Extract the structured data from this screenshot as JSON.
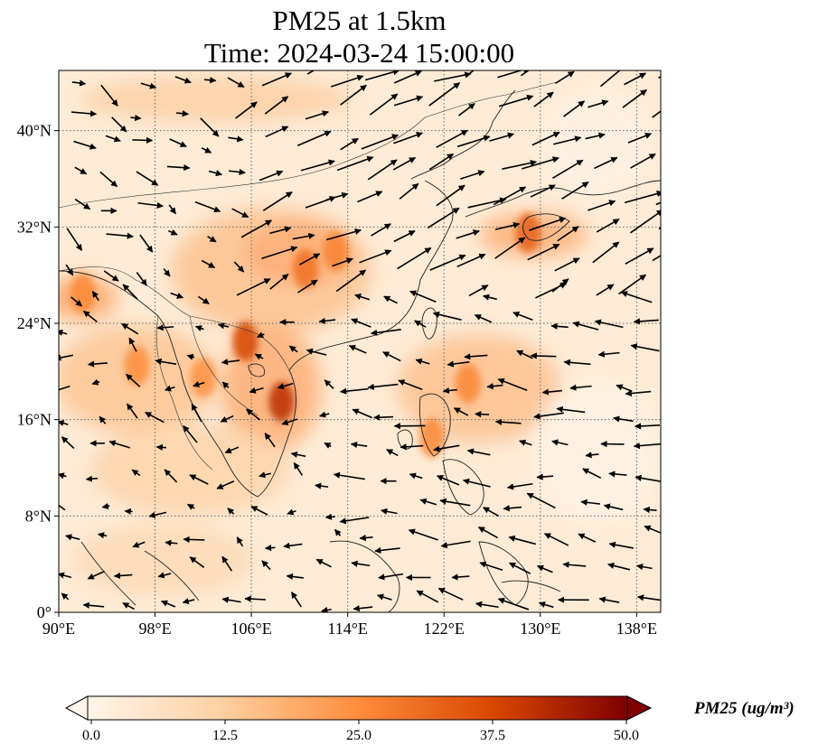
{
  "title": {
    "line1": "PM25 at 1.5km",
    "line2": "Time: 2024-03-24 15:00:00"
  },
  "map": {
    "extent": {
      "lon": [
        90,
        140
      ],
      "lat": [
        0,
        45
      ]
    },
    "lon_ticks": [
      {
        "value": 90,
        "label": "90°E"
      },
      {
        "value": 98,
        "label": "98°E"
      },
      {
        "value": 106,
        "label": "106°E"
      },
      {
        "value": 114,
        "label": "114°E"
      },
      {
        "value": 122,
        "label": "122°E"
      },
      {
        "value": 130,
        "label": "130°E"
      },
      {
        "value": 138,
        "label": "138°E"
      }
    ],
    "lat_ticks": [
      {
        "value": 0,
        "label": "0°"
      },
      {
        "value": 8,
        "label": "8°N"
      },
      {
        "value": 16,
        "label": "16°N"
      },
      {
        "value": 24,
        "label": "24°N"
      },
      {
        "value": 32,
        "label": "32°N"
      },
      {
        "value": 40,
        "label": "40°N"
      }
    ],
    "gridlines": true,
    "hotspots": [
      {
        "lon": 108.5,
        "lat": 17.5,
        "value": 42
      },
      {
        "lon": 105.5,
        "lat": 22.5,
        "value": 38
      },
      {
        "lon": 110.5,
        "lat": 28.5,
        "value": 30
      },
      {
        "lon": 113.0,
        "lat": 30.0,
        "value": 27
      },
      {
        "lon": 129.0,
        "lat": 31.5,
        "value": 33
      },
      {
        "lon": 124.0,
        "lat": 19.0,
        "value": 26
      },
      {
        "lon": 96.5,
        "lat": 20.5,
        "value": 25
      },
      {
        "lon": 92.0,
        "lat": 26.5,
        "value": 26
      },
      {
        "lon": 102.0,
        "lat": 19.5,
        "value": 24
      },
      {
        "lon": 121.0,
        "lat": 14.5,
        "value": 26
      }
    ],
    "wind_arrows": true
  },
  "colorbar": {
    "title": "PM25 (ug/m³)",
    "min": 0.0,
    "max": 50.0,
    "colors": [
      "#fff5eb",
      "#fdd0a2",
      "#fd8d3c",
      "#d94801",
      "#7f0000"
    ],
    "ticks": [
      "0.0",
      "12.5",
      "25.0",
      "37.5",
      "50.0"
    ],
    "extend": "both"
  }
}
